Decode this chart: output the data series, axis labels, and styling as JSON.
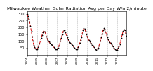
{
  "title": "Milwaukee Weather  Solar Radiation Avg per Day W/m2/minute",
  "title_fontsize": 4.5,
  "line_color": "#dd0000",
  "marker_color": "#000000",
  "background_color": "#ffffff",
  "plot_bg_color": "#ffffff",
  "grid_color": "#bbbbbb",
  "ylim": [
    0,
    320
  ],
  "yticks": [
    50,
    100,
    150,
    200,
    250,
    300
  ],
  "ytick_fontsize": 3.5,
  "xtick_fontsize": 3.0,
  "num_years": 10,
  "start_year": 2004,
  "linewidth": 0.7,
  "markersize": 0.9,
  "values": [
    295,
    280,
    260,
    240,
    210,
    175,
    135,
    100,
    72,
    55,
    45,
    38,
    42,
    55,
    68,
    82,
    100,
    120,
    145,
    165,
    175,
    170,
    155,
    135,
    118,
    105,
    95,
    88,
    80,
    75,
    70,
    65,
    55,
    48,
    42,
    38,
    42,
    52,
    65,
    80,
    100,
    122,
    148,
    168,
    180,
    178,
    162,
    142,
    125,
    112,
    100,
    92,
    85,
    78,
    72,
    65,
    55,
    48,
    42,
    38,
    42,
    54,
    68,
    84,
    105,
    128,
    155,
    178,
    192,
    188,
    172,
    150,
    132,
    118,
    106,
    98,
    88,
    80,
    72,
    64,
    54,
    46,
    40,
    36,
    40,
    52,
    66,
    82,
    104,
    128,
    155,
    178,
    192,
    188,
    170,
    148,
    128,
    112,
    100,
    92,
    84,
    76,
    68,
    60,
    50,
    42,
    36,
    32,
    36,
    48,
    62,
    78,
    100,
    124,
    150,
    172,
    184,
    178,
    160,
    138
  ]
}
